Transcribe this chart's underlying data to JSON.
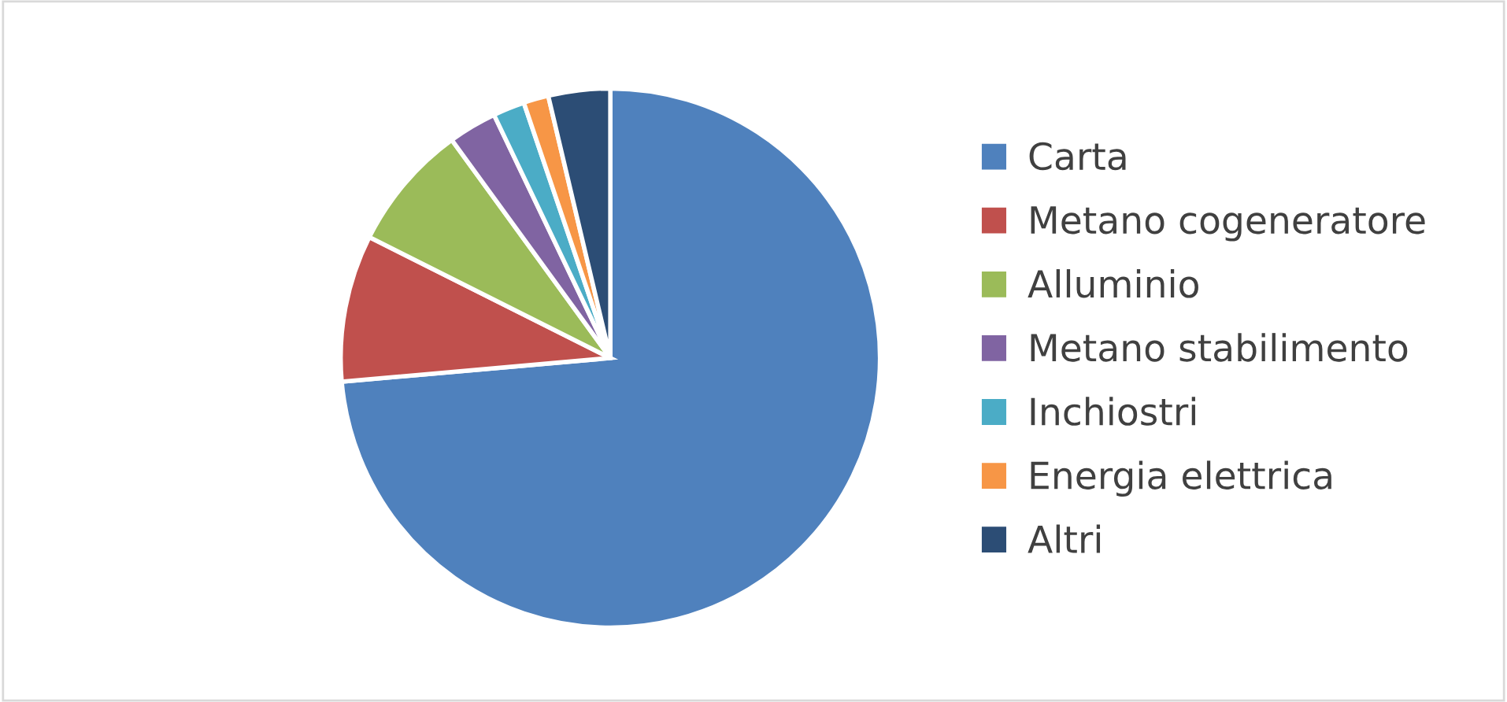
{
  "chart_data": {
    "type": "pie",
    "categories": [
      "Carta",
      "Metano cogeneratore",
      "Alluminio",
      "Metano stabilimento",
      "Inchiostri",
      "Energia elettrica",
      "Altri"
    ],
    "values": [
      73.6,
      8.8,
      7.6,
      2.9,
      1.9,
      1.5,
      3.7
    ],
    "colors": [
      "#4f81bd",
      "#c0504d",
      "#9bbb59",
      "#8064a2",
      "#4bacc6",
      "#f79646",
      "#2c4d75"
    ],
    "legend": "right"
  }
}
